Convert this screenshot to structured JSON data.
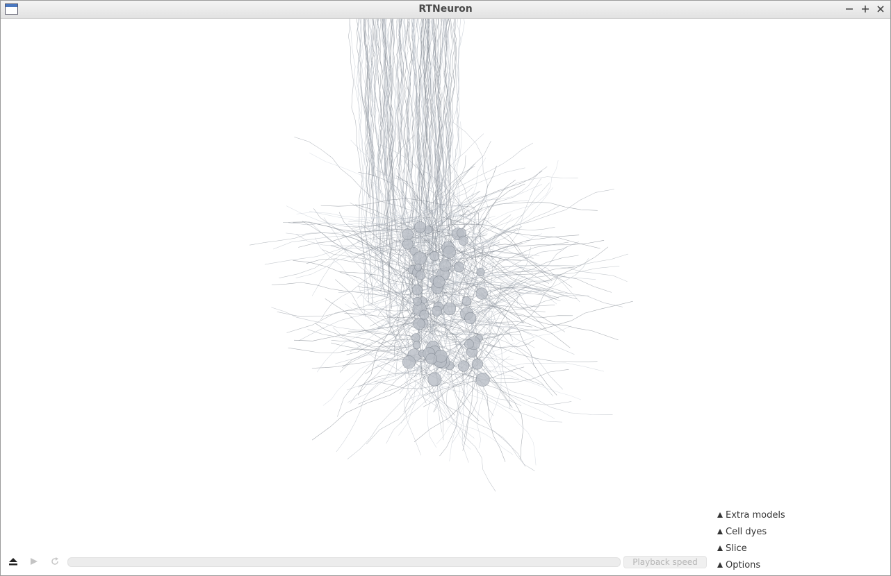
{
  "window": {
    "title": "RTNeuron"
  },
  "panel": {
    "items": [
      "Extra models",
      "Cell dyes",
      "Slice",
      "Options"
    ]
  },
  "playback": {
    "speed_label": "Playback speed"
  }
}
